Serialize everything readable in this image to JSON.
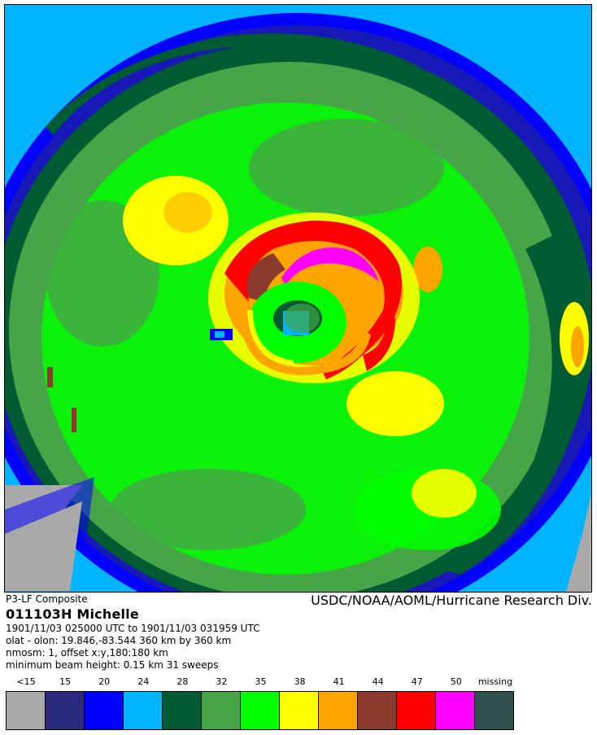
{
  "header": {
    "product": "P3-LF Composite",
    "credit": "USDC/NOAA/AOML/Hurricane Research Div."
  },
  "info": {
    "storm": "011103H   Michelle",
    "time_range": "1901/11/03 025000 UTC to 1901/11/03 031959 UTC",
    "position": "olat - olon: 19.846,-83.544  360 km by 360 km",
    "nmosm": "nmosm: 1, offset x:y,180:180 km",
    "beam": "minimum beam height: 0.15 km      31 sweeps"
  },
  "legend": {
    "labels": [
      "<15",
      "15",
      "20",
      "24",
      "28",
      "32",
      "35",
      "38",
      "41",
      "44",
      "47",
      "50",
      "missing"
    ],
    "colors": [
      "#a9a9a9",
      "#2b2b7d",
      "#0000ff",
      "#00b4ff",
      "#005a32",
      "#46a546",
      "#00ff00",
      "#ffff00",
      "#ffa500",
      "#8b3a2e",
      "#ff0000",
      "#ff00ff",
      "#2f4f4f"
    ]
  },
  "radar": {
    "description_colors": {
      "missing_corner": "#a9a9a9",
      "background_edge": "#00b4ff"
    }
  }
}
